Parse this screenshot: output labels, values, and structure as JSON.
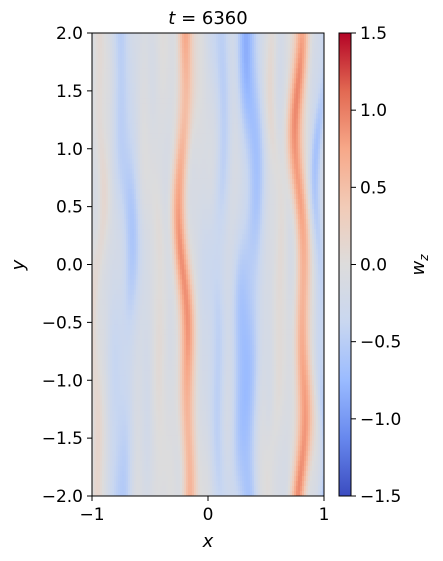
{
  "chart_data": {
    "type": "heatmap",
    "title_var": "t",
    "title_value": "6360",
    "title": "t = 6360",
    "xlabel": "x",
    "ylabel": "y",
    "xlim": [
      -1,
      1
    ],
    "ylim": [
      -2,
      2
    ],
    "xticks": [
      -1,
      0,
      1
    ],
    "xtick_labels": [
      "−1",
      "0",
      "1"
    ],
    "yticks": [
      2.0,
      1.5,
      1.0,
      0.5,
      0.0,
      -0.5,
      -1.0,
      -1.5,
      -2.0
    ],
    "ytick_labels": [
      "2.0",
      "1.5",
      "1.0",
      "0.5",
      "0.0",
      "−0.5",
      "−1.0",
      "−1.5",
      "−2.0"
    ],
    "colorbar": {
      "label_base": "w",
      "label_sub": "z",
      "colormap": "coolwarm",
      "vmin": -1.5,
      "vmax": 1.5,
      "ticks": [
        1.5,
        1.0,
        0.5,
        0.0,
        -0.5,
        -1.0,
        -1.5
      ],
      "tick_labels": [
        "1.5",
        "1.0",
        "0.5",
        "0.0",
        "−0.5",
        "−1.0",
        "−1.5"
      ]
    },
    "field_description": "Vertical streaks of wz; positive bands near x=-0.2 and x=0.78, negative bands near x=-0.65, x=0.35 and x=0.95; weak positive band near x=-0.95",
    "bands": [
      {
        "x": -0.95,
        "amp": 0.25,
        "width": 0.05
      },
      {
        "x": -0.72,
        "amp": -0.35,
        "width": 0.1
      },
      {
        "x": -0.42,
        "amp": 0.12,
        "width": 0.06
      },
      {
        "x": -0.2,
        "amp": 0.85,
        "width": 0.065
      },
      {
        "x": 0.1,
        "amp": -0.3,
        "width": 0.08
      },
      {
        "x": 0.35,
        "amp": -0.55,
        "width": 0.1
      },
      {
        "x": 0.58,
        "amp": 0.15,
        "width": 0.05
      },
      {
        "x": 0.8,
        "amp": 0.9,
        "width": 0.065
      },
      {
        "x": 0.97,
        "amp": -0.4,
        "width": 0.05
      }
    ],
    "colors": {
      "cmap_stops": [
        "#3b4cc0",
        "#6788ee",
        "#9abbff",
        "#c9d7f0",
        "#dddcdc",
        "#f2cbb7",
        "#f7a889",
        "#e26952",
        "#b40426"
      ]
    }
  }
}
